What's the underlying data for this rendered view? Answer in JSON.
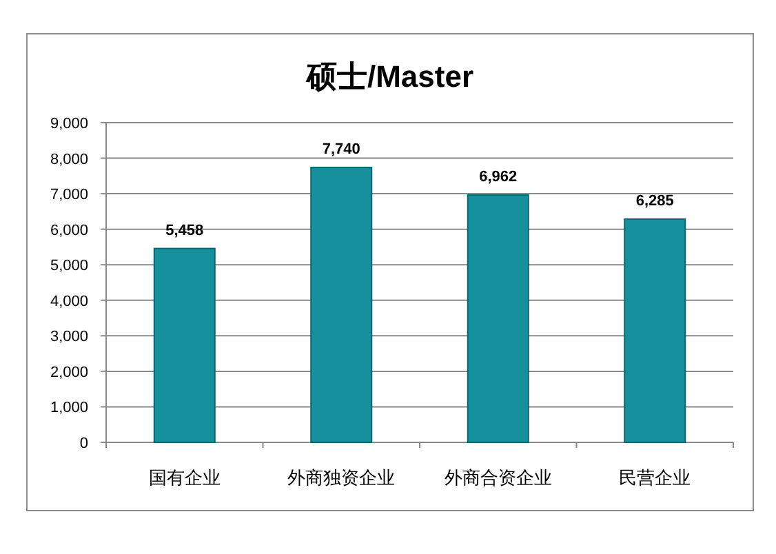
{
  "chart_data": {
    "type": "bar",
    "title": "硕士/Master",
    "categories": [
      "国有企业",
      "外商独资企业",
      "外商合资企业",
      "民营企业"
    ],
    "values": [
      5458,
      7740,
      6962,
      6285
    ],
    "value_labels": [
      "5,458",
      "7,740",
      "6,962",
      "6,285"
    ],
    "color": "#17909e",
    "ylim": [
      0,
      9000
    ],
    "yticks": [
      0,
      {
        "value": 1000,
        "label": "1,000"
      },
      {
        "value": 2000,
        "label": "2,000"
      },
      {
        "value": 3000,
        "label": "3,000"
      },
      {
        "value": 4000,
        "label": "4,000"
      },
      {
        "value": 5000,
        "label": "5,000"
      },
      {
        "value": 6000,
        "label": "6,000"
      },
      {
        "value": 7000,
        "label": "7,000"
      },
      {
        "value": 8000,
        "label": "8,000"
      },
      {
        "value": 9000,
        "label": "9,000"
      }
    ],
    "grid": "y"
  }
}
